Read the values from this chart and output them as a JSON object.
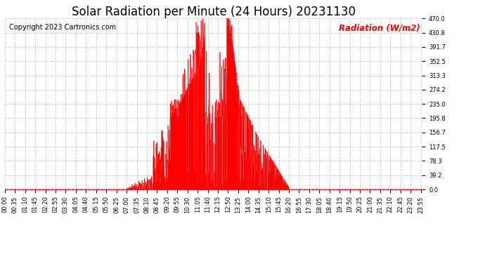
{
  "title": "Solar Radiation per Minute (24 Hours) 20231130",
  "ylabel": "Radiation (W/m2)",
  "ylabel_color": "#ff0000",
  "copyright_text": "Copyright 2023 Cartronics.com",
  "background_color": "#ffffff",
  "fill_color": "#ff0000",
  "line_color": "#ff0000",
  "zero_line_color": "#ff0000",
  "zero_line_style": "--",
  "grid_color": "#bbbbbb",
  "grid_style": "--",
  "ylim": [
    0.0,
    470.0
  ],
  "yticks": [
    0.0,
    39.2,
    78.3,
    117.5,
    156.7,
    195.8,
    235.0,
    274.2,
    313.3,
    352.5,
    391.7,
    430.8,
    470.0
  ],
  "title_fontsize": 12,
  "copyright_fontsize": 7,
  "ylabel_fontsize": 8.5,
  "tick_fontsize": 6,
  "num_minutes": 1440,
  "xtick_interval": 35
}
